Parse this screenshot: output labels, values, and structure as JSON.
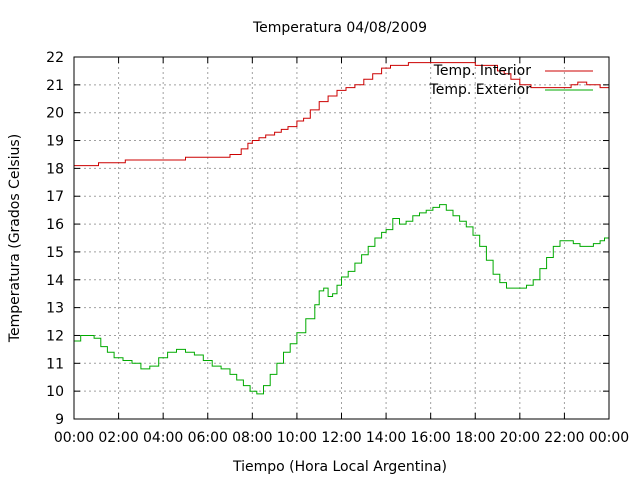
{
  "chart_data": {
    "type": "line",
    "title": "Temperatura 04/08/2009",
    "xlabel": "Tiempo (Hora Local Argentina)",
    "ylabel": "Temperatura (Grados Celsius)",
    "xlim": [
      0,
      24
    ],
    "ylim": [
      9,
      22
    ],
    "x_ticks": [
      "00:00",
      "02:00",
      "04:00",
      "06:00",
      "08:00",
      "10:00",
      "12:00",
      "14:00",
      "16:00",
      "18:00",
      "20:00",
      "22:00",
      "00:00"
    ],
    "y_ticks": [
      "9",
      "10",
      "11",
      "12",
      "13",
      "14",
      "15",
      "16",
      "17",
      "18",
      "19",
      "20",
      "21",
      "22"
    ],
    "grid": true,
    "legend_position": "top-right",
    "series": [
      {
        "name": "Temp. Interior",
        "color": "#cc0000",
        "x": [
          0,
          1,
          1.1,
          2,
          2.3,
          3,
          3.5,
          4,
          4.5,
          5,
          5.5,
          6,
          6.5,
          7,
          7.5,
          7.8,
          8,
          8.3,
          8.6,
          9,
          9.3,
          9.6,
          10,
          10.3,
          10.6,
          11,
          11.4,
          11.8,
          12.2,
          12.6,
          13,
          13.4,
          13.8,
          14.2,
          14.6,
          15,
          15.5,
          16,
          16.5,
          17,
          17.5,
          18,
          18.5,
          19,
          19.3,
          19.6,
          20,
          20.5,
          21,
          21.5,
          22,
          22.3,
          22.6,
          23,
          23.3,
          23.6,
          24
        ],
        "y": [
          18.1,
          18.1,
          18.2,
          18.2,
          18.3,
          18.3,
          18.3,
          18.3,
          18.3,
          18.4,
          18.4,
          18.4,
          18.4,
          18.5,
          18.7,
          18.9,
          19.0,
          19.1,
          19.2,
          19.3,
          19.4,
          19.5,
          19.7,
          19.8,
          20.1,
          20.4,
          20.6,
          20.8,
          20.9,
          21.0,
          21.2,
          21.4,
          21.6,
          21.7,
          21.7,
          21.8,
          21.8,
          21.8,
          21.8,
          21.8,
          21.8,
          21.7,
          21.7,
          21.5,
          21.4,
          21.2,
          21.0,
          20.9,
          20.9,
          20.9,
          20.9,
          21.0,
          21.1,
          21.0,
          21.0,
          20.9,
          20.9
        ]
      },
      {
        "name": "Temp. Exterior",
        "color": "#00aa00",
        "x": [
          0,
          0.3,
          0.6,
          0.9,
          1.2,
          1.5,
          1.8,
          2.2,
          2.6,
          3,
          3.4,
          3.8,
          4.2,
          4.6,
          5,
          5.4,
          5.8,
          6.2,
          6.6,
          7,
          7.3,
          7.6,
          7.9,
          8.2,
          8.5,
          8.8,
          9.1,
          9.4,
          9.7,
          10,
          10.4,
          10.8,
          11,
          11.2,
          11.4,
          11.6,
          11.8,
          12,
          12.3,
          12.6,
          12.9,
          13.2,
          13.5,
          13.8,
          14,
          14.3,
          14.6,
          14.9,
          15.2,
          15.5,
          15.8,
          16.1,
          16.4,
          16.7,
          17,
          17.3,
          17.6,
          17.9,
          18.2,
          18.5,
          18.8,
          19.1,
          19.4,
          19.7,
          20,
          20.3,
          20.6,
          20.9,
          21.2,
          21.5,
          21.8,
          22.1,
          22.4,
          22.7,
          23,
          23.3,
          23.6,
          23.8,
          24
        ],
        "y": [
          11.8,
          12.0,
          12.0,
          11.9,
          11.6,
          11.4,
          11.2,
          11.1,
          11.0,
          10.8,
          10.9,
          11.2,
          11.4,
          11.5,
          11.4,
          11.3,
          11.1,
          10.9,
          10.8,
          10.6,
          10.4,
          10.2,
          10.0,
          9.9,
          10.2,
          10.6,
          11.0,
          11.4,
          11.7,
          12.1,
          12.6,
          13.1,
          13.6,
          13.7,
          13.4,
          13.5,
          13.8,
          14.1,
          14.3,
          14.6,
          14.9,
          15.2,
          15.5,
          15.7,
          15.8,
          16.2,
          16.0,
          16.1,
          16.3,
          16.4,
          16.5,
          16.6,
          16.7,
          16.5,
          16.3,
          16.1,
          15.9,
          15.6,
          15.2,
          14.7,
          14.2,
          13.9,
          13.7,
          13.7,
          13.7,
          13.8,
          14.0,
          14.4,
          14.8,
          15.2,
          15.4,
          15.4,
          15.3,
          15.2,
          15.2,
          15.3,
          15.4,
          15.5,
          15.7
        ]
      }
    ]
  }
}
